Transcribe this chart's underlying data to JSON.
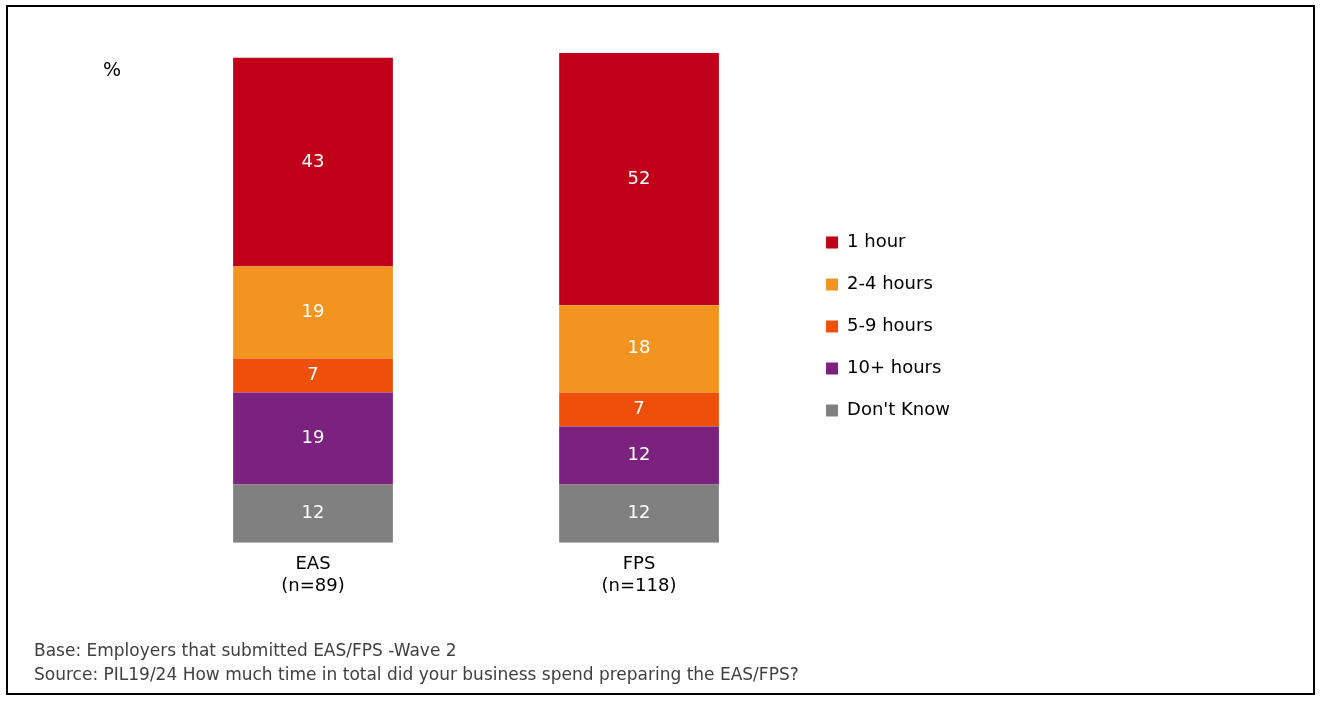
{
  "chart_data": {
    "type": "bar",
    "stacked": true,
    "ylabel": "%",
    "categories": [
      "EAS (n=89)",
      "FPS (n=118)"
    ],
    "series": [
      {
        "name": "Don't Know",
        "color": "#808080",
        "values": [
          12,
          12
        ]
      },
      {
        "name": "10+ hours",
        "color": "#7b2180",
        "values": [
          19,
          12
        ]
      },
      {
        "name": "5-9 hours",
        "color": "#ee5009",
        "values": [
          7,
          7
        ]
      },
      {
        "name": "2-4 hours",
        "color": "#f39420",
        "values": [
          19,
          18
        ]
      },
      {
        "name": "1 hour",
        "color": "#c00018",
        "values": [
          43,
          52
        ]
      }
    ],
    "ylim": [
      0,
      101
    ],
    "data_labels": true,
    "legend": "right",
    "annotations": [
      "Base: Employers that submitted EAS/FPS -Wave 2",
      "Source: PIL19/24 How much time in total did your business spend preparing the EAS/FPS?"
    ]
  }
}
